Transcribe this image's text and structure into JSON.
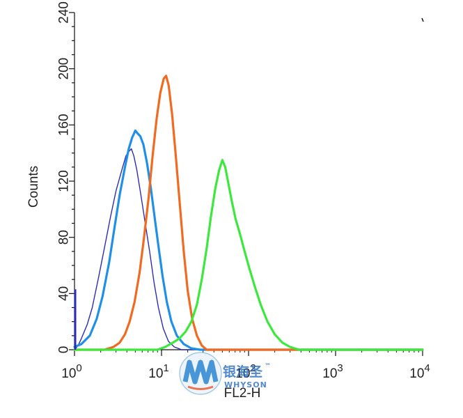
{
  "chart_data": {
    "type": "line",
    "title": "",
    "xlabel": "FL2-H",
    "ylabel": "Counts",
    "xscale": "log",
    "xlim": [
      1,
      10000
    ],
    "ylim": [
      0,
      240
    ],
    "grid": false,
    "xticks": [
      {
        "value": 1,
        "base": "10",
        "exp": "0"
      },
      {
        "value": 10,
        "base": "10",
        "exp": "1"
      },
      {
        "value": 100,
        "base": "10",
        "exp": "2"
      },
      {
        "value": 1000,
        "base": "10",
        "exp": "3"
      },
      {
        "value": 10000,
        "base": "10",
        "exp": "4"
      }
    ],
    "yticks": [
      "0",
      "40",
      "80",
      "120",
      "160",
      "200",
      "240"
    ],
    "series": [
      {
        "color": "#2b2bb8",
        "width": 1.4,
        "points": [
          [
            1,
            0
          ],
          [
            1.1,
            3
          ],
          [
            1.2,
            8
          ],
          [
            1.4,
            18
          ],
          [
            1.6,
            30
          ],
          [
            1.9,
            52
          ],
          [
            2.2,
            72
          ],
          [
            2.6,
            95
          ],
          [
            3.0,
            113
          ],
          [
            3.5,
            128
          ],
          [
            3.9,
            138
          ],
          [
            4.2,
            141
          ],
          [
            4.5,
            143
          ],
          [
            4.8,
            138
          ],
          [
            5.2,
            128
          ],
          [
            5.8,
            110
          ],
          [
            6.5,
            90
          ],
          [
            7.3,
            70
          ],
          [
            8.2,
            48
          ],
          [
            9.2,
            30
          ],
          [
            10.5,
            15
          ],
          [
            12,
            6
          ],
          [
            14,
            2
          ],
          [
            17,
            0
          ],
          [
            10000,
            0
          ]
        ]
      },
      {
        "color": "#1f8fe8",
        "width": 3.2,
        "points": [
          [
            1,
            2
          ],
          [
            1.2,
            4
          ],
          [
            1.5,
            10
          ],
          [
            1.8,
            22
          ],
          [
            2.1,
            38
          ],
          [
            2.5,
            62
          ],
          [
            2.9,
            88
          ],
          [
            3.3,
            110
          ],
          [
            3.8,
            130
          ],
          [
            4.2,
            143
          ],
          [
            4.6,
            151
          ],
          [
            5.0,
            156
          ],
          [
            5.3,
            154
          ],
          [
            5.7,
            152
          ],
          [
            6.2,
            146
          ],
          [
            6.8,
            133
          ],
          [
            7.5,
            116
          ],
          [
            8.3,
            95
          ],
          [
            9.2,
            74
          ],
          [
            10.3,
            52
          ],
          [
            11.5,
            34
          ],
          [
            13,
            20
          ],
          [
            15,
            10
          ],
          [
            18,
            4
          ],
          [
            22,
            1
          ],
          [
            28,
            0
          ],
          [
            10000,
            0
          ]
        ]
      },
      {
        "color": "#f26a1f",
        "width": 3.2,
        "points": [
          [
            1,
            0
          ],
          [
            2.2,
            0
          ],
          [
            2.8,
            2
          ],
          [
            3.3,
            5
          ],
          [
            3.8,
            11
          ],
          [
            4.3,
            20
          ],
          [
            4.9,
            34
          ],
          [
            5.6,
            55
          ],
          [
            6.3,
            80
          ],
          [
            7.1,
            108
          ],
          [
            7.9,
            138
          ],
          [
            8.8,
            165
          ],
          [
            9.7,
            183
          ],
          [
            10.6,
            193
          ],
          [
            11.3,
            195
          ],
          [
            12.1,
            188
          ],
          [
            13.2,
            168
          ],
          [
            14.6,
            138
          ],
          [
            16.2,
            104
          ],
          [
            18,
            70
          ],
          [
            20,
            42
          ],
          [
            22.5,
            22
          ],
          [
            25.5,
            10
          ],
          [
            29,
            3
          ],
          [
            33,
            0
          ],
          [
            10000,
            0
          ]
        ]
      },
      {
        "color": "#3be83b",
        "width": 3.2,
        "points": [
          [
            1,
            0
          ],
          [
            9,
            0
          ],
          [
            11,
            2
          ],
          [
            13.5,
            5
          ],
          [
            16,
            8
          ],
          [
            19,
            13
          ],
          [
            22,
            20
          ],
          [
            25.5,
            32
          ],
          [
            29,
            50
          ],
          [
            33,
            72
          ],
          [
            37,
            95
          ],
          [
            41.5,
            115
          ],
          [
            46,
            128
          ],
          [
            50,
            135
          ],
          [
            54,
            130
          ],
          [
            58,
            120
          ],
          [
            64,
            106
          ],
          [
            71,
            93
          ],
          [
            80,
            82
          ],
          [
            90,
            70
          ],
          [
            102,
            58
          ],
          [
            118,
            45
          ],
          [
            138,
            32
          ],
          [
            165,
            20
          ],
          [
            200,
            11
          ],
          [
            245,
            5
          ],
          [
            300,
            2
          ],
          [
            380,
            0
          ],
          [
            10000,
            0
          ]
        ]
      }
    ]
  },
  "watermark": {
    "cn": "银海圣",
    "tm": "™",
    "en": "WHYSON",
    "colors": [
      "#1f7fd0",
      "#e35a2a",
      "#f3b21d",
      "#2ba36a"
    ]
  }
}
